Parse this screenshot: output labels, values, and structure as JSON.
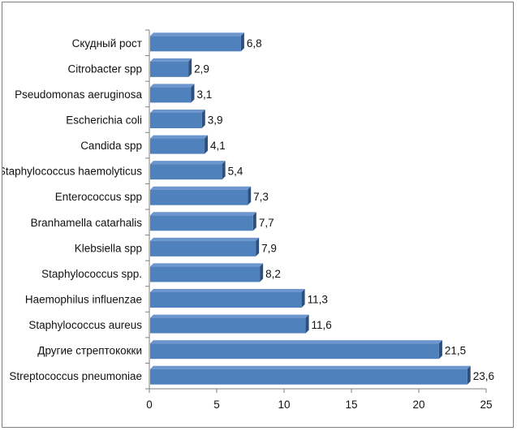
{
  "chart_data": {
    "type": "bar",
    "orientation": "horizontal",
    "title": "",
    "xlabel": "",
    "ylabel": "",
    "xlim": [
      0,
      25
    ],
    "xticks": [
      0,
      5,
      10,
      15,
      20,
      25
    ],
    "grid": false,
    "legend": "none",
    "categories": [
      "Скудный рост",
      "Citrobacter spp",
      "Pseudomonas aeruginosa",
      "Escherichia coli",
      "Candida spp",
      "Staphylococcus haemolyticus",
      "Enterococcus spp",
      "Branhamella catarhalis",
      "Klebsiella spp",
      "Staphylococcus spp.",
      "Haemophilus influenzae",
      "Staphylococcus aureus",
      "Другие стрептококки",
      "Streptococcus pneumoniae"
    ],
    "values": [
      6.8,
      2.9,
      3.1,
      3.9,
      4.1,
      5.4,
      7.3,
      7.7,
      7.9,
      8.2,
      11.3,
      11.6,
      21.5,
      23.6
    ],
    "value_labels": [
      "6,8",
      "2,9",
      "3,1",
      "3,9",
      "4,1",
      "5,4",
      "7,3",
      "7,7",
      "7,9",
      "8,2",
      "11,3",
      "11,6",
      "21,5",
      "23,6"
    ],
    "colors": {
      "bar": "#4f81bd",
      "bar_top": "#6d96cf",
      "bar_side": "#2c4f7c",
      "axis": "#7f7f7f"
    }
  }
}
